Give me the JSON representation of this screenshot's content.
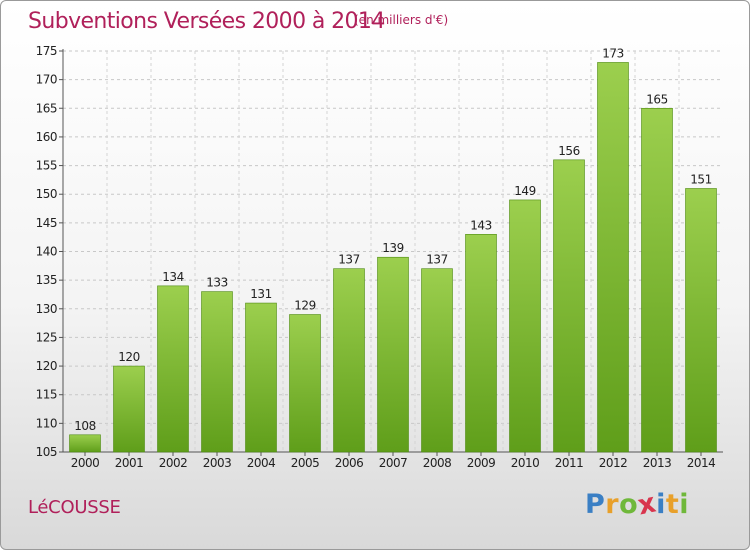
{
  "header": {
    "title": "Subventions Versées 2000 à 2014",
    "subtitle": "(en milliers d'€)"
  },
  "footer": {
    "place": "LéCOUSSE",
    "logo_letters": [
      {
        "ch": "P",
        "color": "#3a7fc4"
      },
      {
        "ch": "r",
        "color": "#e8a02a"
      },
      {
        "ch": "o",
        "color": "#6fb83a"
      },
      {
        "ch": "x",
        "color": "#d8354e"
      },
      {
        "ch": "i",
        "color": "#3a7fc4"
      },
      {
        "ch": "t",
        "color": "#e8a02a"
      },
      {
        "ch": "i",
        "color": "#6fb83a"
      }
    ]
  },
  "chart_data": {
    "type": "bar",
    "title": "Subventions Versées 2000 à 2014",
    "subtitle": "(en milliers d'€)",
    "xlabel": "",
    "ylabel": "",
    "categories": [
      "2000",
      "2001",
      "2002",
      "2003",
      "2004",
      "2005",
      "2006",
      "2007",
      "2008",
      "2009",
      "2010",
      "2011",
      "2012",
      "2013",
      "2014"
    ],
    "values": [
      108,
      120,
      134,
      133,
      131,
      129,
      137,
      139,
      137,
      143,
      149,
      156,
      173,
      165,
      151
    ],
    "ylim": [
      105,
      175
    ],
    "yticks": [
      105,
      110,
      115,
      120,
      125,
      130,
      135,
      140,
      145,
      150,
      155,
      160,
      165,
      170,
      175
    ],
    "grid": true,
    "bar_color_top": "#9ccf4e",
    "bar_color_bottom": "#5f9e1a",
    "bar_outline": "#4e8a12"
  }
}
